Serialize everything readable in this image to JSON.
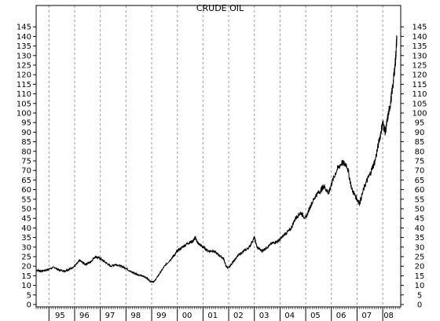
{
  "chart_data": {
    "type": "line",
    "title": "CRUDE OIL",
    "xlabel": "",
    "ylabel": "",
    "ylim": [
      0,
      150
    ],
    "yticks": [
      0,
      5,
      10,
      15,
      20,
      25,
      30,
      35,
      40,
      45,
      50,
      55,
      60,
      65,
      70,
      75,
      80,
      85,
      90,
      95,
      100,
      105,
      110,
      115,
      120,
      125,
      130,
      135,
      140,
      145
    ],
    "xlim": [
      1994.5,
      2008.7
    ],
    "x_tick_labels": [
      "95",
      "96",
      "97",
      "98",
      "99",
      "00",
      "01",
      "02",
      "03",
      "04",
      "05",
      "06",
      "07",
      "08"
    ],
    "grid": "vertical-dashed",
    "series": [
      {
        "x": [
          1994.5,
          1994.7,
          1994.9,
          1995.0,
          1995.2,
          1995.4,
          1995.6,
          1995.8,
          1996.0,
          1996.2,
          1996.4,
          1996.6,
          1996.8,
          1997.0,
          1997.2,
          1997.4,
          1997.6,
          1997.8,
          1998.0,
          1998.2,
          1998.4,
          1998.6,
          1998.8,
          1998.95,
          1999.1,
          1999.3,
          1999.5,
          1999.7,
          1999.9,
          2000.0,
          2000.2,
          2000.4,
          2000.6,
          2000.7,
          2000.8,
          2001.0,
          2001.2,
          2001.4,
          2001.6,
          2001.8,
          2001.9,
          2002.0,
          2002.2,
          2002.4,
          2002.6,
          2002.8,
          2003.0,
          2003.1,
          2003.3,
          2003.5,
          2003.7,
          2003.9,
          2004.0,
          2004.2,
          2004.4,
          2004.6,
          2004.8,
          2005.0,
          2005.2,
          2005.4,
          2005.6,
          2005.7,
          2005.9,
          2006.0,
          2006.2,
          2006.4,
          2006.6,
          2006.8,
          2007.0,
          2007.1,
          2007.3,
          2007.5,
          2007.7,
          2007.9,
          2008.0,
          2008.1,
          2008.2,
          2008.3,
          2008.4,
          2008.5,
          2008.55
        ],
        "values": [
          18,
          17.5,
          18,
          18.5,
          19.5,
          18,
          17.5,
          18.5,
          20,
          23,
          21,
          22,
          25,
          24,
          22,
          20,
          21,
          20,
          19,
          17,
          16,
          15,
          14,
          12,
          12,
          16,
          20,
          23,
          26,
          28,
          30,
          32,
          33,
          35,
          32,
          30,
          28,
          28,
          26,
          24,
          20,
          19,
          23,
          26,
          28,
          30,
          35,
          30,
          28,
          30,
          32,
          33,
          34,
          37,
          39,
          45,
          48,
          45,
          52,
          57,
          60,
          62,
          58,
          63,
          70,
          74,
          73,
          60,
          55,
          53,
          62,
          68,
          75,
          88,
          95,
          90,
          98,
          105,
          115,
          128,
          140
        ]
      }
    ]
  }
}
